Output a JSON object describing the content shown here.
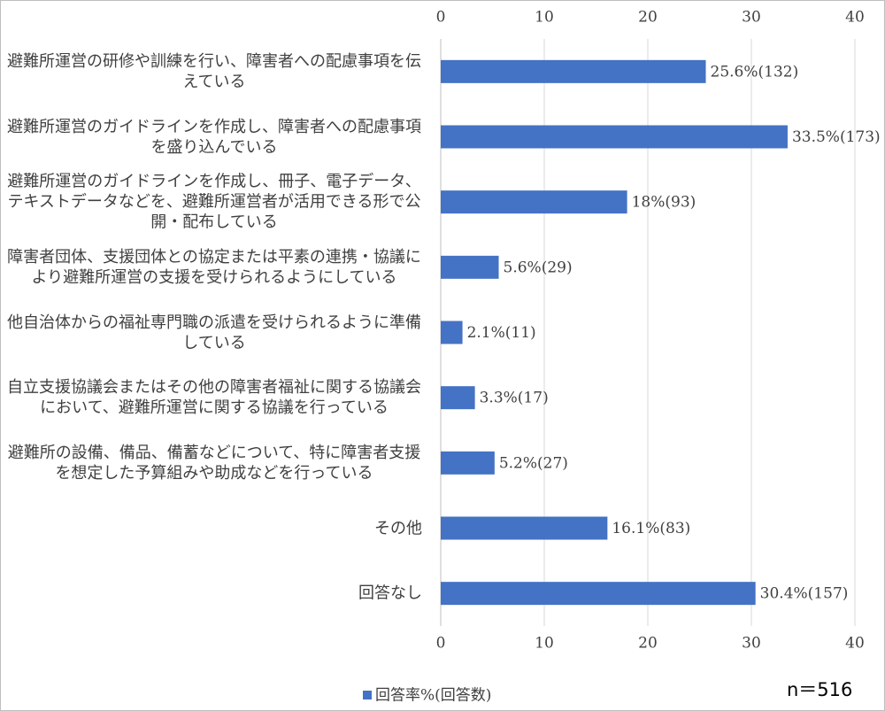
{
  "chart_data": {
    "type": "hbar",
    "categories": [
      "避難所運営の研修や訓練を行い、障害者への配慮事項を伝えている",
      "避難所運営のガイドラインを作成し、障害者への配慮事項を盛り込んでいる",
      "避難所運営のガイドラインを作成し、冊子、電子データ、テキストデータなどを、避難所運営者が活用できる形で公開・配布している",
      "障害者団体、支援団体との協定または平素の連携・協議により避難所運営の支援を受けられるようにしている",
      "他自治体からの福祉専門職の派遣を受けられるように準備している",
      "自立支援協議会またはその他の障害者福祉に関する協議会において、避難所運営に関する協議を行っている",
      "避難所の設備、備品、備蓄などについて、特に障害者支援を想定した予算組みや助成などを行っている",
      "その他",
      "回答なし"
    ],
    "series": [
      {
        "name": "回答率%(回答数)",
        "color": "#4472c4",
        "values": [
          25.6,
          33.5,
          18,
          5.6,
          2.1,
          3.3,
          5.2,
          16.1,
          30.4
        ],
        "value_labels": [
          "25.6%(132)",
          "33.5%(173)",
          "18%(93)",
          "5.6%(29)",
          "2.1%(11)",
          "3.3%(17)",
          "5.2%(27)",
          "16.1%(83)",
          "30.4%(157)"
        ]
      }
    ],
    "xlim": [
      0,
      40
    ],
    "xticks": [
      0,
      10,
      20,
      30,
      40
    ],
    "grid": true,
    "annotation": "n＝516"
  }
}
